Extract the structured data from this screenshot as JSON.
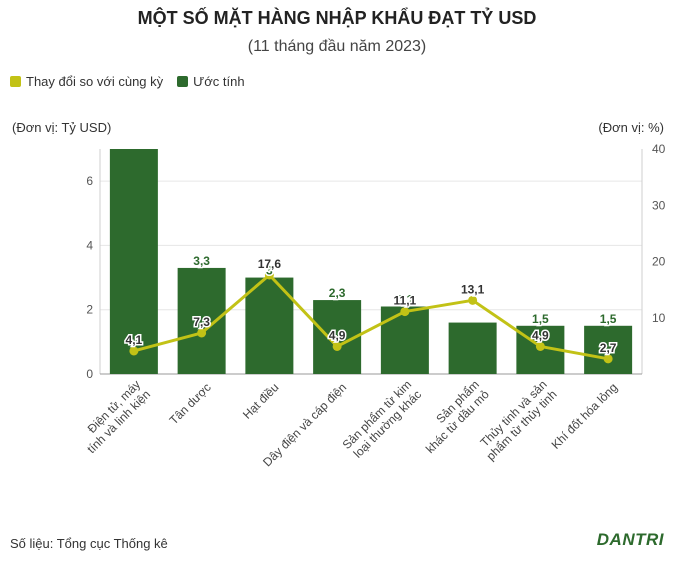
{
  "title": "MỘT SỐ MẶT HÀNG NHẬP KHẨU ĐẠT TỶ USD",
  "subtitle": "(11 tháng đầu năm 2023)",
  "unit_left": "(Đơn vị: Tỷ USD)",
  "unit_right": "(Đơn vị: %)",
  "source": "Số liệu: Tổng cục Thống kê",
  "brand": "DANTRI",
  "colors": {
    "bar": "#2d6a2d",
    "line": "#c2c216",
    "grid": "#e6e6e6"
  },
  "chart_data": {
    "type": "bar",
    "categories": [
      "Điện tử, máy tính và linh kiện",
      "Tân dược",
      "Hạt điều",
      "Dây điện và cáp điện",
      "Sản phẩm từ kim loại thường khác",
      "Sản phẩm khác từ dầu mỏ",
      "Thủy tinh và sản phẩm từ thủy tinh",
      "Khí đốt hóa lỏng"
    ],
    "series": [
      {
        "name": "Ước tính",
        "type": "bar",
        "axis": "left",
        "values": [
          7.0,
          3.3,
          3.0,
          2.3,
          2.1,
          1.6,
          1.5,
          1.5
        ],
        "labels": [
          "",
          "3,3",
          "3",
          "2,3",
          "2,1",
          "",
          "1,5",
          "1,5"
        ]
      },
      {
        "name": "Thay đổi so với cùng kỳ",
        "type": "line",
        "axis": "right",
        "values": [
          4.1,
          7.3,
          17.6,
          4.9,
          11.1,
          13.1,
          4.9,
          2.7
        ],
        "labels": [
          "4,1",
          "7,3",
          "17,6",
          "4,9",
          "11,1",
          "13,1",
          "4,9",
          "2,7"
        ]
      }
    ],
    "y_left": {
      "ylim": [
        0,
        7
      ],
      "ticks": [
        "0",
        "2",
        "4",
        "6"
      ]
    },
    "y_right": {
      "ylim": [
        0,
        40
      ],
      "ticks": [
        "10",
        "20",
        "30",
        "40"
      ]
    },
    "legend": "top-left"
  }
}
